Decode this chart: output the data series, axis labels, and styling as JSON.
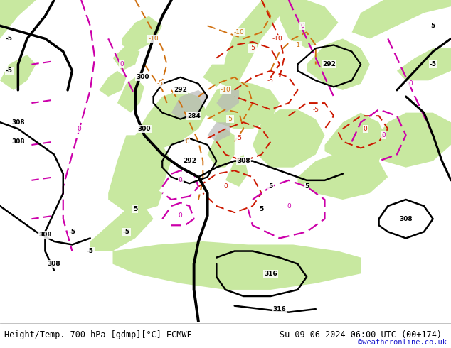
{
  "title_left": "Height/Temp. 700 hPa [gdmp][°C] ECMWF",
  "title_right": "Su 09-06-2024 06:00 UTC (00+174)",
  "copyright": "©weatheronline.co.uk",
  "bg_color": "#e8e8e8",
  "land_green": "#c8e8a0",
  "land_gray": "#b8b8b8",
  "sea_color": "#dcdcdc",
  "fig_width": 6.34,
  "fig_height": 4.9,
  "dpi": 100,
  "black_lw": 1.8,
  "thick_lw": 2.8,
  "orange_color": "#d07010",
  "red_color": "#cc1800",
  "magenta_color": "#cc00aa",
  "title_fontsize": 8.5,
  "copyright_fontsize": 7.5,
  "copyright_color": "#1515cc",
  "label_fontsize": 6.5
}
